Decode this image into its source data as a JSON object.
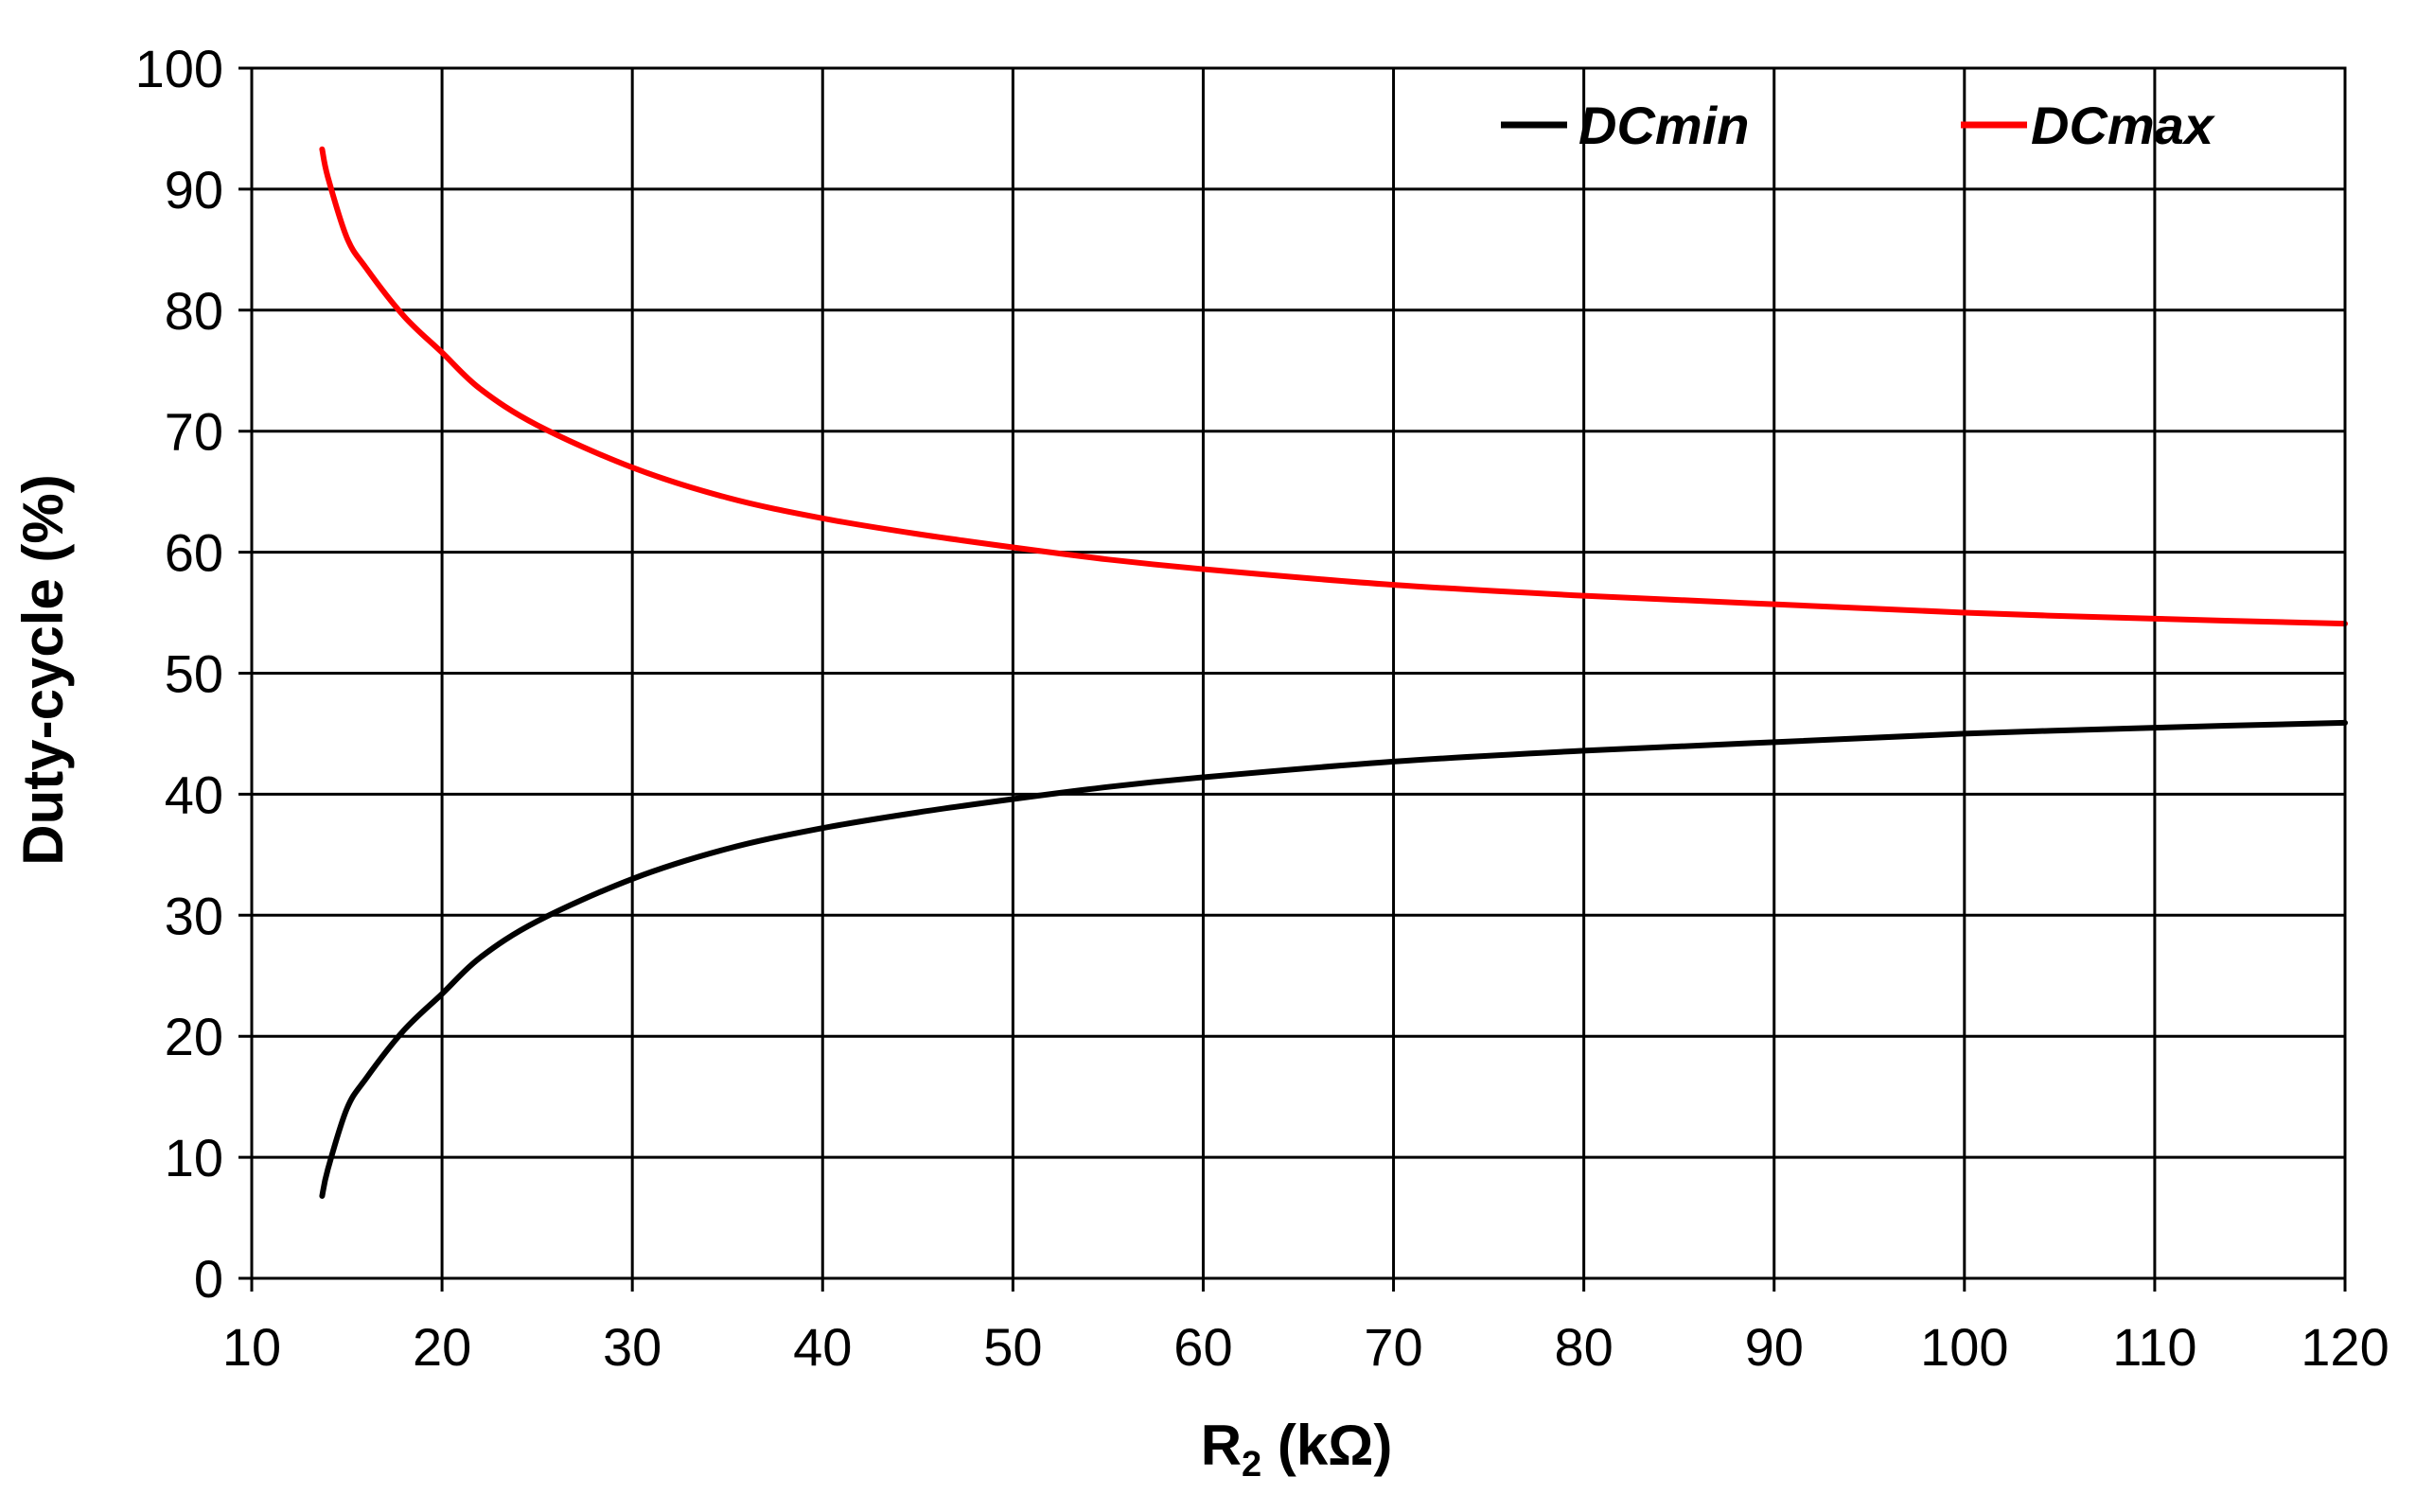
{
  "chart_data": {
    "type": "line",
    "title": "",
    "xlabel": {
      "main": "R",
      "sub": "2",
      "rest": " (kΩ)"
    },
    "ylabel": "Duty-cycle (%)",
    "xlim": [
      10,
      120
    ],
    "ylim": [
      0,
      100
    ],
    "xticks": [
      10,
      20,
      30,
      40,
      50,
      60,
      70,
      80,
      90,
      100,
      110,
      120
    ],
    "yticks": [
      0,
      10,
      20,
      30,
      40,
      50,
      60,
      70,
      80,
      90,
      100
    ],
    "grid": true,
    "legend_position": "top-right",
    "series": [
      {
        "name": "DCmin",
        "color": "#000000",
        "x": [
          13.7,
          14.0,
          15.0,
          16.0,
          18.0,
          20.0,
          22.0,
          25.0,
          30.0,
          35.0,
          40.0,
          45.0,
          50.0,
          55.0,
          60.0,
          70.0,
          80.0,
          90.0,
          100.0,
          110.0,
          120.0
        ],
        "y": [
          6.8,
          9.0,
          14.0,
          16.5,
          20.5,
          23.5,
          26.5,
          29.5,
          33.0,
          35.5,
          37.2,
          38.5,
          39.6,
          40.6,
          41.4,
          42.7,
          43.6,
          44.3,
          45.0,
          45.5,
          45.9
        ]
      },
      {
        "name": "DCmax",
        "color": "#ff0000",
        "x": [
          13.7,
          14.0,
          15.0,
          16.0,
          18.0,
          20.0,
          22.0,
          25.0,
          30.0,
          35.0,
          40.0,
          45.0,
          50.0,
          55.0,
          60.0,
          70.0,
          80.0,
          90.0,
          100.0,
          110.0,
          120.0
        ],
        "y": [
          93.3,
          91.0,
          86.0,
          83.5,
          79.5,
          76.5,
          73.5,
          70.5,
          67.0,
          64.5,
          62.8,
          61.5,
          60.4,
          59.4,
          58.6,
          57.3,
          56.4,
          55.7,
          55.0,
          54.5,
          54.1
        ]
      }
    ]
  }
}
